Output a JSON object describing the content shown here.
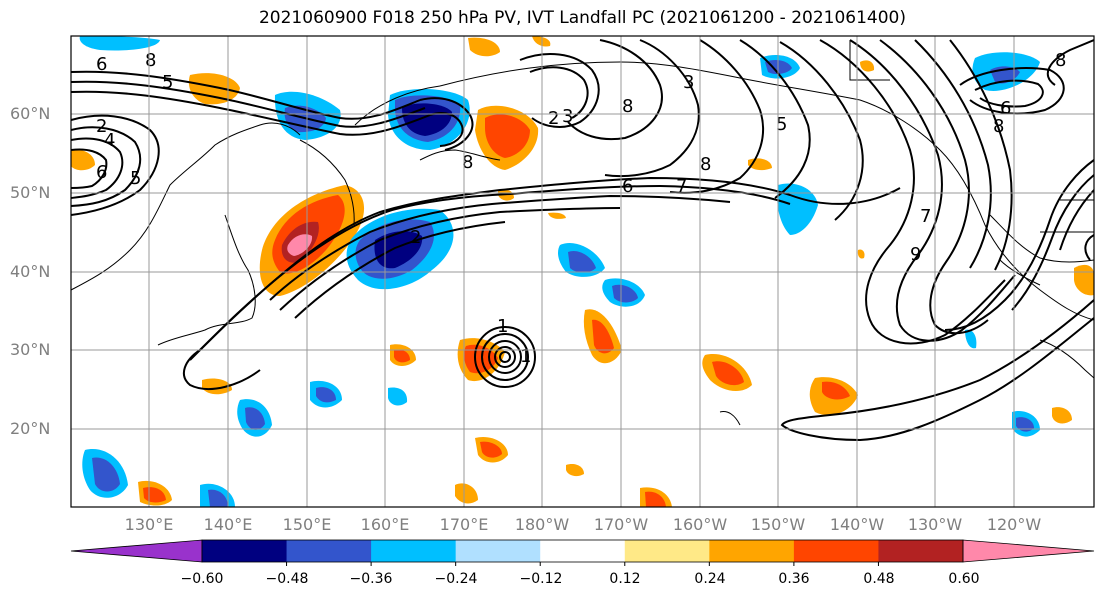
{
  "title": "2021060900 F018 250 hPa PV, IVT Landfall PC (2021061200 - 2021061400)",
  "lat_labels": [
    "60°N",
    "50°N",
    "40°N",
    "30°N",
    "20°N"
  ],
  "lon_labels": [
    "130°E",
    "140°E",
    "150°E",
    "160°E",
    "170°E",
    "180°W",
    "170°W",
    "160°W",
    "150°W",
    "140°W",
    "130°W",
    "120°W"
  ],
  "colorbar": {
    "colors": [
      "#9932cc",
      "#000080",
      "#3355cc",
      "#00bfff",
      "#b0e0ff",
      "#ffffff",
      "#ffe987",
      "#ffa500",
      "#ff4500",
      "#b22222",
      "#ff88aa"
    ],
    "tick_labels": [
      "−0.60",
      "−0.48",
      "−0.36",
      "−0.24",
      "−0.12",
      "0.12",
      "0.24",
      "0.36",
      "0.48",
      "0.60"
    ]
  },
  "contour_labels": [
    "6",
    "8",
    "5",
    "2",
    "4",
    "6",
    "5",
    "2",
    "3",
    "8",
    "8",
    "3",
    "8",
    "6",
    "7",
    "8",
    "6",
    "8",
    "5",
    "7",
    "9",
    "1",
    "1",
    "2"
  ]
}
